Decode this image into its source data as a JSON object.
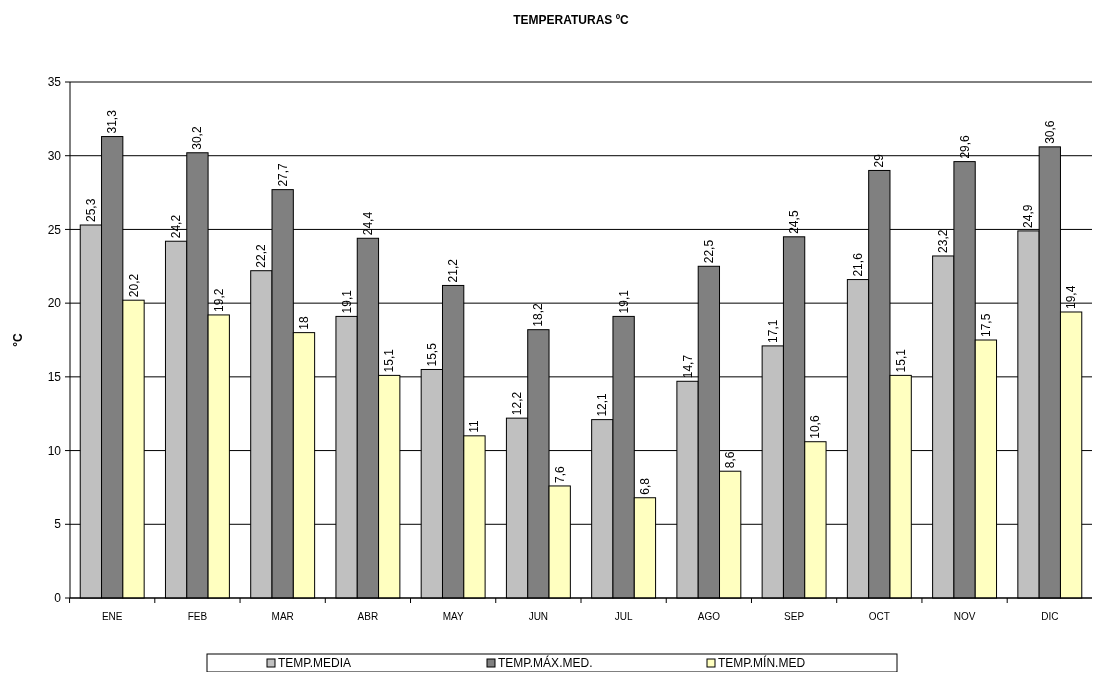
{
  "chart_data": {
    "type": "bar",
    "title": "TEMPERATURAS ºC",
    "ylabel": "°C",
    "categories": [
      "ENE",
      "FEB",
      "MAR",
      "ABR",
      "MAY",
      "JUN",
      "JUL",
      "AGO",
      "SEP",
      "OCT",
      "NOV",
      "DIC"
    ],
    "series": [
      {
        "name": "TEMP.MEDIA",
        "color": "#c0c0c0",
        "values": [
          25.3,
          24.2,
          22.2,
          19.1,
          15.5,
          12.2,
          12.1,
          14.7,
          17.1,
          21.6,
          23.2,
          24.9
        ],
        "value_labels": [
          "25,3",
          "24,2",
          "22,2",
          "19,1",
          "15,5",
          "12,2",
          "12,1",
          "14,7",
          "17,1",
          "21,6",
          "23,2",
          "24,9"
        ]
      },
      {
        "name": "TEMP.MÁX.MED.",
        "color": "#808080",
        "values": [
          31.3,
          30.2,
          27.7,
          24.4,
          21.2,
          18.2,
          19.1,
          22.5,
          24.5,
          29,
          29.6,
          30.6
        ],
        "value_labels": [
          "31,3",
          "30,2",
          "27,7",
          "24,4",
          "21,2",
          "18,2",
          "19,1",
          "22,5",
          "24,5",
          "29",
          "29,6",
          "30,6"
        ]
      },
      {
        "name": "TEMP.MÍN.MED",
        "color": "#ffffc0",
        "values": [
          20.2,
          19.2,
          18,
          15.1,
          11,
          7.6,
          6.8,
          8.6,
          10.6,
          15.1,
          17.5,
          19.4
        ],
        "value_labels": [
          "20,2",
          "19,2",
          "18",
          "15,1",
          "11",
          "7,6",
          "6,8",
          "8,6",
          "10,6",
          "15,1",
          "17,5",
          "19,4"
        ]
      }
    ],
    "ylim": [
      0,
      35
    ],
    "yticks": [
      0,
      5,
      10,
      15,
      20,
      25,
      30,
      35
    ],
    "grid": "y",
    "legend": "bottom"
  }
}
